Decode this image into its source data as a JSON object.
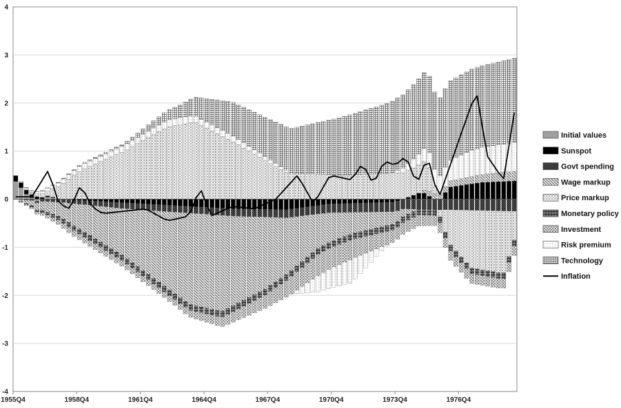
{
  "chart_data": {
    "type": "bar",
    "stacked": true,
    "xlabel": "",
    "ylabel": "",
    "ylim": [
      -4,
      4
    ],
    "y_ticks": [
      -4,
      -3,
      -2,
      -1,
      0,
      1,
      2,
      3,
      4
    ],
    "x_tick_labels": [
      "1955Q4",
      "1958Q4",
      "1961Q4",
      "1964Q4",
      "1967Q4",
      "1970Q4",
      "1973Q4",
      "1976Q4"
    ],
    "grid": true,
    "legend_position": "right",
    "start_period": "1955Q4",
    "end_period": "1979Q2",
    "keyframes": {
      "initial": [
        [
          0,
          0.37
        ],
        [
          2,
          0.1
        ],
        [
          4,
          -0.05
        ],
        [
          6,
          0.05
        ],
        [
          8,
          0
        ],
        [
          92,
          0
        ]
      ],
      "sunspot": [
        [
          0,
          0.12
        ],
        [
          4,
          0.05
        ],
        [
          8,
          0
        ],
        [
          40,
          -0.2
        ],
        [
          50,
          -0.22
        ],
        [
          58,
          -0.1
        ],
        [
          70,
          -0.06
        ],
        [
          75,
          0.15
        ],
        [
          78,
          -0.05
        ],
        [
          80,
          0.25
        ],
        [
          86,
          0.35
        ],
        [
          92,
          0.38
        ]
      ],
      "govt": [
        [
          0,
          0
        ],
        [
          6,
          -0.05
        ],
        [
          20,
          -0.12
        ],
        [
          40,
          -0.15
        ],
        [
          60,
          -0.18
        ],
        [
          80,
          -0.22
        ],
        [
          92,
          -0.25
        ]
      ],
      "wage": [
        [
          0,
          0
        ],
        [
          8,
          -0.3
        ],
        [
          20,
          -1.0
        ],
        [
          32,
          -1.9
        ],
        [
          38,
          -2.0
        ],
        [
          46,
          -1.5
        ],
        [
          56,
          -0.7
        ],
        [
          62,
          -0.45
        ],
        [
          70,
          -0.25
        ],
        [
          76,
          0.1
        ],
        [
          84,
          0.15
        ],
        [
          92,
          0.2
        ]
      ],
      "price": [
        [
          0,
          0
        ],
        [
          6,
          0.1
        ],
        [
          12,
          0.6
        ],
        [
          20,
          1.0
        ],
        [
          28,
          1.5
        ],
        [
          33,
          1.6
        ],
        [
          40,
          1.2
        ],
        [
          50,
          0.55
        ],
        [
          60,
          0.5
        ],
        [
          72,
          0.55
        ],
        [
          76,
          0.6
        ],
        [
          80,
          -0.7
        ],
        [
          84,
          -1.2
        ],
        [
          90,
          -1.3
        ],
        [
          92,
          -0.6
        ]
      ],
      "monetary": [
        [
          0,
          0
        ],
        [
          10,
          -0.1
        ],
        [
          30,
          -0.12
        ],
        [
          60,
          -0.12
        ],
        [
          92,
          -0.12
        ]
      ],
      "investment": [
        [
          0,
          0
        ],
        [
          10,
          -0.12
        ],
        [
          30,
          -0.12
        ],
        [
          46,
          -0.28
        ],
        [
          56,
          -0.45
        ],
        [
          62,
          -0.4
        ],
        [
          70,
          -0.25
        ],
        [
          80,
          -0.2
        ],
        [
          92,
          -0.2
        ]
      ],
      "risk": [
        [
          0,
          0
        ],
        [
          10,
          0.1
        ],
        [
          20,
          0.12
        ],
        [
          30,
          0.15
        ],
        [
          40,
          0.12
        ],
        [
          50,
          0.05
        ],
        [
          56,
          -0.35
        ],
        [
          62,
          -0.5
        ],
        [
          68,
          -0.05
        ],
        [
          76,
          0.3
        ],
        [
          84,
          0.55
        ],
        [
          92,
          0.6
        ]
      ],
      "technology": [
        [
          0,
          0
        ],
        [
          10,
          0.02
        ],
        [
          20,
          0.04
        ],
        [
          30,
          0.25
        ],
        [
          40,
          0.7
        ],
        [
          50,
          0.9
        ],
        [
          60,
          1.2
        ],
        [
          70,
          1.5
        ],
        [
          80,
          1.65
        ],
        [
          92,
          1.75
        ]
      ],
      "inflation": [
        [
          0,
          0.05
        ],
        [
          3,
          0.05
        ],
        [
          6,
          0.6
        ],
        [
          8,
          -0.1
        ],
        [
          10,
          -0.2
        ],
        [
          12,
          0.3
        ],
        [
          14,
          -0.15
        ],
        [
          16,
          -0.3
        ],
        [
          20,
          -0.25
        ],
        [
          24,
          -0.2
        ],
        [
          28,
          -0.45
        ],
        [
          32,
          -0.35
        ],
        [
          34,
          0.25
        ],
        [
          36,
          -0.35
        ],
        [
          40,
          -0.15
        ],
        [
          44,
          -0.2
        ],
        [
          48,
          0.0
        ],
        [
          52,
          0.5
        ],
        [
          55,
          -0.1
        ],
        [
          58,
          0.5
        ],
        [
          62,
          0.4
        ],
        [
          64,
          0.75
        ],
        [
          66,
          0.3
        ],
        [
          68,
          0.8
        ],
        [
          70,
          0.7
        ],
        [
          72,
          0.9
        ],
        [
          74,
          0.3
        ],
        [
          76,
          0.9
        ],
        [
          78,
          0.0
        ],
        [
          82,
          1.3
        ],
        [
          85,
          2.25
        ],
        [
          87,
          0.9
        ],
        [
          90,
          0.4
        ],
        [
          92,
          1.8
        ]
      ]
    },
    "series": [
      {
        "key": "initial",
        "name": "Initial values",
        "color": "#a8a8a8",
        "pattern": "solid-gray"
      },
      {
        "key": "sunspot",
        "name": "Sunspot",
        "color": "#000000",
        "pattern": "solid-black"
      },
      {
        "key": "govt",
        "name": "Govt spending",
        "color": "#555555",
        "pattern": "crosshatch-dense"
      },
      {
        "key": "wage",
        "name": "Wage markup",
        "color": "#888888",
        "pattern": "diagonal-lines"
      },
      {
        "key": "price",
        "name": "Price markup",
        "color": "#cfcfcf",
        "pattern": "speckle"
      },
      {
        "key": "monetary",
        "name": "Monetary policy",
        "color": "#222222",
        "pattern": "brick"
      },
      {
        "key": "investment",
        "name": "Investment",
        "color": "#9a9a9a",
        "pattern": "diamond"
      },
      {
        "key": "risk",
        "name": "Risk premium",
        "color": "#ffffff",
        "pattern": "dots"
      },
      {
        "key": "technology",
        "name": "Technology",
        "color": "#777777",
        "pattern": "vertical-grid"
      },
      {
        "key": "inflation",
        "name": "Inflation",
        "color": "#000000",
        "pattern": "line"
      }
    ]
  }
}
